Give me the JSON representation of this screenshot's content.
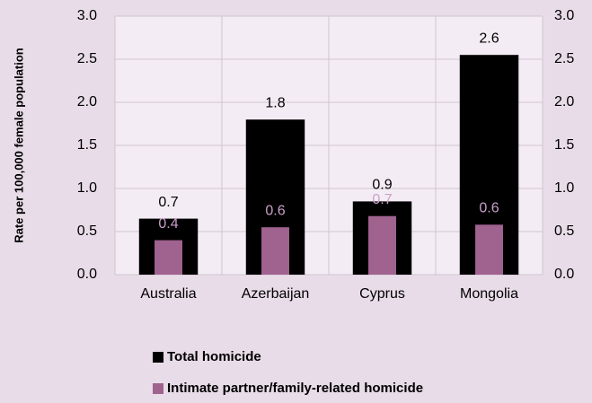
{
  "chart_data": {
    "type": "bar",
    "y_axis_label": "Rate per 100,000 female population",
    "categories": [
      "Australia",
      "Azerbaijan",
      "Cyprus",
      "Mongolia"
    ],
    "series": [
      {
        "name": "Total homicide",
        "color": "#000000",
        "values": [
          0.65,
          1.8,
          0.85,
          2.55
        ],
        "value_labels": [
          "0.7",
          "1.8",
          "0.9",
          "2.6"
        ]
      },
      {
        "name": "Intimate partner/family-related homicide",
        "color": "#a0628f",
        "values": [
          0.4,
          0.55,
          0.68,
          0.58
        ],
        "value_labels": [
          "0.4",
          "0.6",
          "0.7",
          "0.6"
        ]
      }
    ],
    "ylim": [
      0,
      3
    ],
    "yticks": [
      {
        "value": 0,
        "label": "0.0"
      },
      {
        "value": 0.5,
        "label": "0.5"
      },
      {
        "value": 1,
        "label": "1.0"
      },
      {
        "value": 1.5,
        "label": "1.5"
      },
      {
        "value": 2,
        "label": "2.0"
      },
      {
        "value": 2.5,
        "label": "2.5"
      },
      {
        "value": 3,
        "label": "3.0"
      }
    ],
    "y2lim": [
      0,
      3
    ],
    "y2ticks": [
      {
        "value": 0,
        "label": "0.0"
      },
      {
        "value": 0.5,
        "label": "0.5"
      },
      {
        "value": 1,
        "label": "1.0"
      },
      {
        "value": 1.5,
        "label": "1.5"
      },
      {
        "value": 2,
        "label": "2.0"
      },
      {
        "value": 2.5,
        "label": "2.5"
      },
      {
        "value": 3,
        "label": "3.0"
      }
    ],
    "grid": true
  }
}
